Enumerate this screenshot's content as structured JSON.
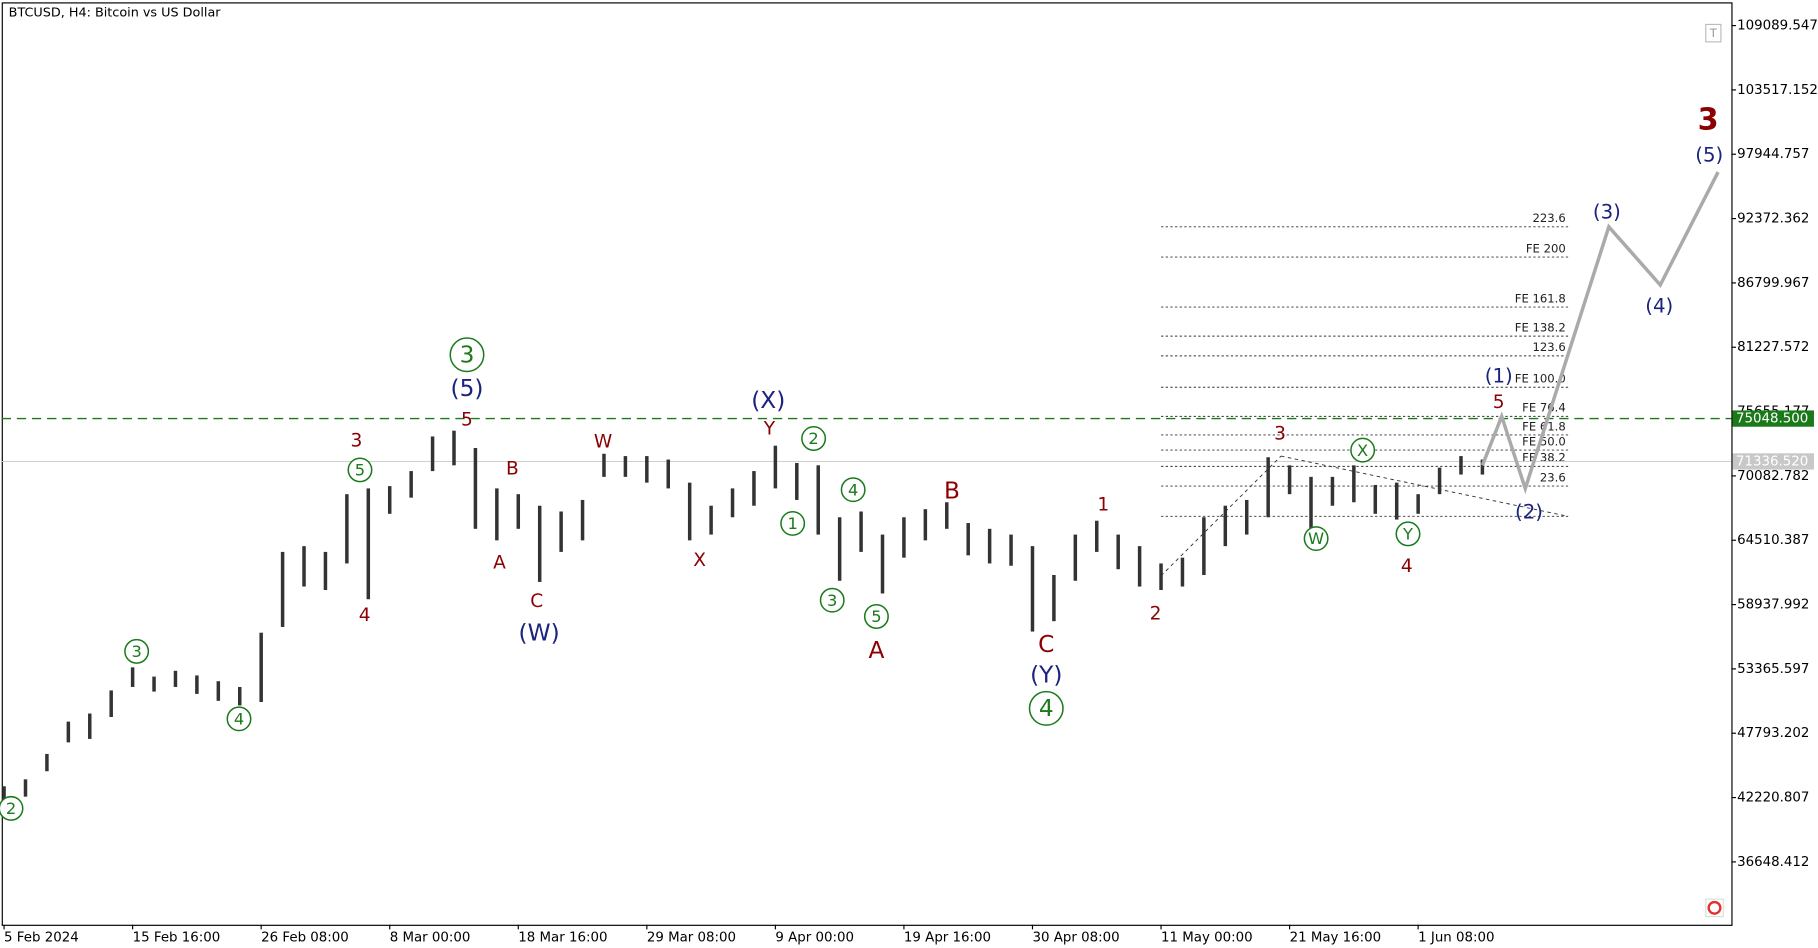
{
  "chart_data": {
    "type": "ohlc",
    "title": "BTCUSD, H4:  Bitcoin vs US Dollar",
    "xlim": [
      -0.11,
      80.62
    ],
    "ylim": [
      31205,
      111104
    ],
    "xticks": [
      {
        "value": 0,
        "label": "5 Feb 2024"
      },
      {
        "value": 6,
        "label": "15 Feb 16:00"
      },
      {
        "value": 12,
        "label": "26 Feb 08:00"
      },
      {
        "value": 18,
        "label": "8 Mar 00:00"
      },
      {
        "value": 24,
        "label": "18 Mar 16:00"
      },
      {
        "value": 30,
        "label": "29 Mar 08:00"
      },
      {
        "value": 36,
        "label": "9 Apr 00:00"
      },
      {
        "value": 42,
        "label": "19 Apr 16:00"
      },
      {
        "value": 48,
        "label": "30 Apr 08:00"
      },
      {
        "value": 54,
        "label": "11 May 00:00"
      },
      {
        "value": 60,
        "label": "21 May 16:00"
      },
      {
        "value": 66,
        "label": "1 Jun 08:00"
      }
    ],
    "yticks": [
      109089.547,
      103517.152,
      97944.757,
      92372.362,
      86799.967,
      81227.572,
      75655.177,
      70082.782,
      64510.387,
      58937.992,
      53365.597,
      47793.202,
      42220.807,
      36648.412
    ],
    "bar_color": "#333333",
    "x": [
      0,
      1,
      2,
      3,
      4,
      5,
      6,
      7,
      8,
      9,
      10,
      11,
      12,
      13,
      14,
      15,
      16,
      17,
      18,
      19,
      20,
      21,
      22,
      23,
      24,
      25,
      26,
      27,
      28,
      29,
      30,
      31,
      32,
      33,
      34,
      35,
      36,
      37,
      38,
      39,
      40,
      41,
      42,
      43,
      44,
      45,
      46,
      47,
      48,
      49,
      50,
      51,
      52,
      53,
      54,
      55,
      56,
      57,
      58,
      59,
      60,
      61,
      62,
      63,
      64,
      65,
      66,
      67,
      68,
      69
    ],
    "highs": [
      43200,
      43800,
      46000,
      48800,
      49500,
      51500,
      53500,
      52700,
      53200,
      52800,
      52300,
      51800,
      56500,
      63500,
      64000,
      63500,
      68500,
      69000,
      69200,
      70500,
      73500,
      74000,
      72500,
      69000,
      68500,
      67500,
      67000,
      68000,
      72000,
      71800,
      71800,
      71500,
      69500,
      67500,
      69000,
      70500,
      72700,
      71200,
      71000,
      66500,
      67000,
      65000,
      66500,
      67200,
      67800,
      66000,
      65500,
      65000,
      64000,
      61500,
      65000,
      66200,
      65000,
      64000,
      62500,
      63000,
      66500,
      67500,
      68000,
      71700,
      71000,
      70000,
      70000,
      71000,
      69300,
      69500,
      68500,
      70800,
      71800,
      71500
    ],
    "lows": [
      41900,
      42300,
      44500,
      47000,
      47300,
      49200,
      51800,
      51400,
      51800,
      51200,
      50600,
      50200,
      50500,
      57000,
      60500,
      60200,
      62500,
      59400,
      66800,
      68200,
      70500,
      71000,
      65500,
      64500,
      65500,
      60900,
      63500,
      64500,
      70000,
      70000,
      69500,
      69000,
      64500,
      65000,
      66500,
      67500,
      69000,
      68000,
      65000,
      61000,
      63500,
      59900,
      63000,
      64500,
      65500,
      63200,
      62500,
      62300,
      56600,
      57500,
      61000,
      63500,
      62000,
      60500,
      60200,
      60500,
      61500,
      64000,
      65000,
      66500,
      68500,
      65500,
      67500,
      67800,
      66800,
      66300,
      66800,
      68500,
      70200,
      70200
    ],
    "projection": {
      "color": "#aaaaaa",
      "x": [
        69,
        69.9,
        71,
        74.9,
        77.3,
        80
      ],
      "values": [
        71000,
        75240,
        68990,
        91660,
        86620,
        96400
      ]
    },
    "price_lines": [
      {
        "value": 75048.5,
        "label": "75048.500",
        "color": "#1a7a1a",
        "dashed": true
      },
      {
        "value": 71336.52,
        "label": "71336.520",
        "color": "#c8c8c8",
        "dashed": false
      }
    ],
    "fib_levels": [
      {
        "value": 91660,
        "label": "223.6"
      },
      {
        "value": 89040,
        "label": "FE 200"
      },
      {
        "value": 84710,
        "label": "FE 161.8"
      },
      {
        "value": 82190,
        "label": "FE 138.2"
      },
      {
        "value": 80480,
        "label": "123.6"
      },
      {
        "value": 77760,
        "label": "FE 100.0"
      },
      {
        "value": 75240,
        "label": "FE 76.4"
      },
      {
        "value": 73630,
        "label": "FE 61.8"
      },
      {
        "value": 72320,
        "label": "FE 50.0"
      },
      {
        "value": 70910,
        "label": "FE 38.2"
      },
      {
        "value": 69200,
        "label": "23.6"
      },
      {
        "value": 66580,
        "label": null
      }
    ],
    "fib_x": [
      54,
      73
    ],
    "trendlines": [
      {
        "x": [
          54,
          59.6
        ],
        "values": [
          61430,
          71800
        ]
      },
      {
        "x": [
          59.6,
          73
        ],
        "values": [
          71800,
          66580
        ]
      }
    ],
    "annotations": [
      {
        "text": "2",
        "color": "#1b7a1b",
        "circled": true
      },
      {
        "text": "3",
        "color": "#1b7a1b",
        "circled": true
      },
      {
        "text": "4",
        "color": "#1b7a1b",
        "circled": true
      },
      {
        "text": "5",
        "color": "#1b7a1b",
        "circled": true
      },
      {
        "text": "3",
        "color": "#1b7a1b",
        "circled": true
      },
      {
        "text": "2",
        "color": "#1b7a1b",
        "circled": true
      },
      {
        "text": "4",
        "color": "#1b7a1b",
        "circled": true
      },
      {
        "text": "1",
        "color": "#1b7a1b",
        "circled": true
      },
      {
        "text": "3",
        "color": "#1b7a1b",
        "circled": true
      },
      {
        "text": "5",
        "color": "#1b7a1b",
        "circled": true
      },
      {
        "text": "4",
        "color": "#1b7a1b",
        "circled": true
      },
      {
        "text": "W",
        "color": "#1b7a1b",
        "circled": true
      },
      {
        "text": "X",
        "color": "#1b7a1b",
        "circled": true
      },
      {
        "text": "Y",
        "color": "#1b7a1b",
        "circled": true
      },
      {
        "text": "(5)",
        "color": "#1a237e",
        "circled": false
      },
      {
        "text": "(W)",
        "color": "#1a237e",
        "circled": false
      },
      {
        "text": "(X)",
        "color": "#1a237e",
        "circled": false
      },
      {
        "text": "(Y)",
        "color": "#1a237e",
        "circled": false
      },
      {
        "text": "(1)",
        "color": "#1a237e",
        "circled": false
      },
      {
        "text": "(2)",
        "color": "#1a237e",
        "circled": false
      },
      {
        "text": "(3)",
        "color": "#1a237e",
        "circled": false
      },
      {
        "text": "(4)",
        "color": "#1a237e",
        "circled": false
      },
      {
        "text": "(5)",
        "color": "#1a237e",
        "circled": false
      },
      {
        "text": "5",
        "color": "#8b0000",
        "circled": false
      },
      {
        "text": "3",
        "color": "#8b0000",
        "circled": false
      },
      {
        "text": "4",
        "color": "#8b0000",
        "circled": false
      },
      {
        "text": "B",
        "color": "#8b0000",
        "circled": false
      },
      {
        "text": "A",
        "color": "#8b0000",
        "circled": false
      },
      {
        "text": "C",
        "color": "#8b0000",
        "circled": false
      },
      {
        "text": "W",
        "color": "#8b0000",
        "circled": false
      },
      {
        "text": "X",
        "color": "#8b0000",
        "circled": false
      },
      {
        "text": "Y",
        "color": "#8b0000",
        "circled": false
      },
      {
        "text": "A",
        "color": "#8b0000",
        "circled": false
      },
      {
        "text": "B",
        "color": "#8b0000",
        "circled": false
      },
      {
        "text": "C",
        "color": "#8b0000",
        "circled": false
      },
      {
        "text": "1",
        "color": "#8b0000",
        "circled": false
      },
      {
        "text": "2",
        "color": "#8b0000",
        "circled": false
      },
      {
        "text": "3",
        "color": "#8b0000",
        "circled": false
      },
      {
        "text": "4",
        "color": "#8b0000",
        "circled": false
      },
      {
        "text": "5",
        "color": "#8b0000",
        "circled": false
      },
      {
        "text": "3",
        "color": "#8b0000",
        "circled": false
      }
    ]
  }
}
